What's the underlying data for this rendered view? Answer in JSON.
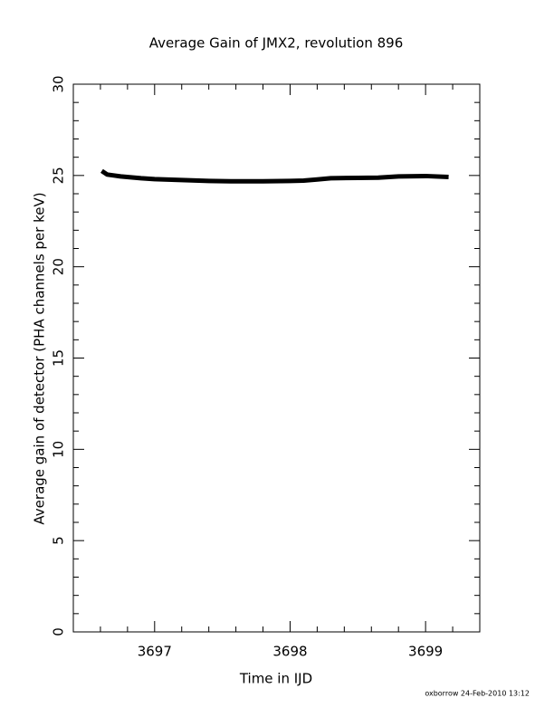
{
  "chart_data": {
    "type": "line",
    "title": "Average Gain of JMX2, revolution 896",
    "xlabel": "Time in IJD",
    "ylabel": "Average gain of detector (PHA channels per keV)",
    "footer": "oxborrow 24-Feb-2010 13:12",
    "x": [
      3696.61,
      3696.65,
      3696.75,
      3696.9,
      3697.0,
      3697.2,
      3697.4,
      3697.6,
      3697.8,
      3698.0,
      3698.1,
      3698.2,
      3698.3,
      3698.5,
      3698.65,
      3698.8,
      3699.0,
      3699.17
    ],
    "series": [
      {
        "name": "Average gain",
        "color": "#000000",
        "values": [
          25.25,
          25.05,
          24.95,
          24.85,
          24.8,
          24.75,
          24.7,
          24.68,
          24.68,
          24.7,
          24.72,
          24.78,
          24.85,
          24.87,
          24.88,
          24.95,
          24.97,
          24.92
        ]
      }
    ],
    "xlim": [
      3696.4,
      3699.4
    ],
    "xticks": [
      3697,
      3698,
      3699
    ],
    "ylim": [
      0,
      30
    ],
    "yticks": [
      0,
      5,
      10,
      15,
      20,
      25,
      30
    ],
    "minor_xticks": [
      3696.6,
      3696.8,
      3697.2,
      3697.4,
      3697.6,
      3697.8,
      3698.2,
      3698.4,
      3698.6,
      3698.8,
      3699.2
    ],
    "minor_yticks": [
      1,
      2,
      3,
      4,
      6,
      7,
      8,
      9,
      11,
      12,
      13,
      14,
      16,
      17,
      18,
      19,
      21,
      22,
      23,
      24,
      26,
      27,
      28,
      29
    ]
  }
}
